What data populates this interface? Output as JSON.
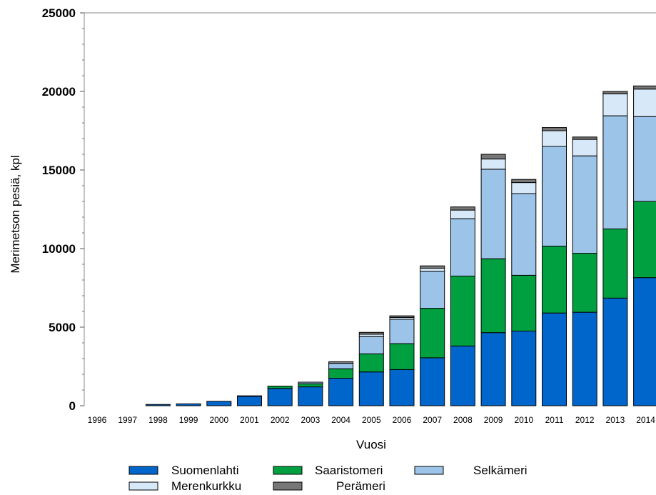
{
  "chart_data": {
    "type": "bar",
    "stacked": true,
    "xlabel": "Vuosi",
    "ylabel": "Merimetson pesiä, kpl",
    "ylim": [
      0,
      25000
    ],
    "yticks": [
      "0",
      "5000",
      "10000",
      "15000",
      "20000",
      "25000"
    ],
    "categories": [
      "1996",
      "1997",
      "1998",
      "1999",
      "2000",
      "2001",
      "2002",
      "2003",
      "2004",
      "2005",
      "2006",
      "2007",
      "2008",
      "2009",
      "2010",
      "2011",
      "2012",
      "2013",
      "2014"
    ],
    "series": [
      {
        "name": "Suomenlahti",
        "color": "#0066cc",
        "values": [
          0,
          0,
          80,
          120,
          280,
          600,
          1100,
          1200,
          1750,
          2150,
          2300,
          3050,
          3800,
          4650,
          4750,
          5900,
          5950,
          6850,
          8150
        ]
      },
      {
        "name": "Saaristomeri",
        "color": "#00a040",
        "values": [
          0,
          0,
          0,
          0,
          0,
          30,
          150,
          200,
          600,
          1150,
          1650,
          3150,
          4450,
          4700,
          3550,
          4250,
          3750,
          4400,
          4850
        ]
      },
      {
        "name": "Selkämeri",
        "color": "#9cc3e8",
        "values": [
          0,
          0,
          0,
          0,
          0,
          0,
          0,
          100,
          350,
          1100,
          1550,
          2350,
          3650,
          5700,
          5200,
          6350,
          6200,
          7200,
          5400
        ]
      },
      {
        "name": "Merenkurkku",
        "color": "#d7e9f8",
        "values": [
          0,
          0,
          0,
          0,
          0,
          0,
          0,
          0,
          0,
          150,
          120,
          200,
          550,
          650,
          700,
          1000,
          1050,
          1400,
          1750
        ]
      },
      {
        "name": "Perämeri",
        "color": "#777777",
        "values": [
          0,
          0,
          0,
          0,
          0,
          0,
          0,
          0,
          100,
          120,
          100,
          150,
          200,
          300,
          200,
          200,
          150,
          150,
          200
        ]
      }
    ],
    "grid": false,
    "legend_position": "bottom"
  }
}
